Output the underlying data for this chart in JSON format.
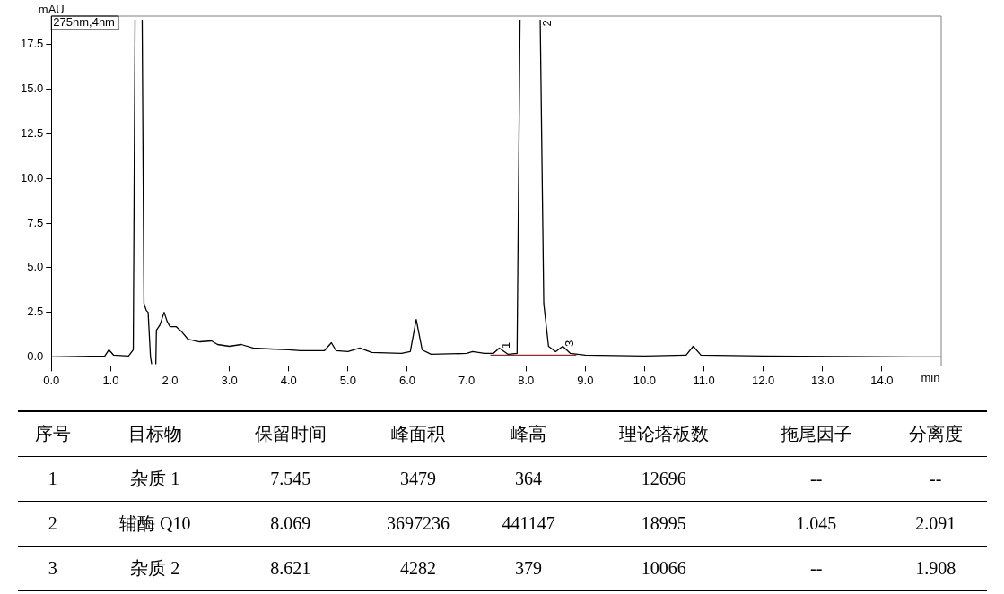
{
  "chart_data": [
    {
      "type": "line",
      "xlabel": "min",
      "ylabel": "mAU",
      "annotations": [
        "275nm,4nm",
        {
          "text": "1",
          "x": 7.545,
          "y": 0.5
        },
        {
          "text": "2",
          "x": 8.24,
          "y": 18.9
        },
        {
          "text": "3",
          "x": 8.621,
          "y": 0.6
        }
      ],
      "series": [
        {
          "color": "#000000",
          "x": [
            0,
            0.9,
            0.97,
            1.05,
            1.3,
            1.38,
            1.41,
            1.42,
            1.52,
            1.53,
            1.56,
            1.6,
            1.63,
            1.67,
            1.69,
            1.7,
            1.74,
            1.76,
            1.77,
            1.83,
            1.9,
            1.95,
            2.0,
            2.1,
            2.2,
            2.3,
            2.5,
            2.7,
            2.8,
            3.0,
            3.2,
            3.4,
            3.7,
            4.0,
            4.2,
            4.6,
            4.72,
            4.8,
            5.0,
            5.2,
            5.4,
            5.9,
            6.05,
            6.15,
            6.25,
            6.4,
            7.0,
            7.1,
            7.3,
            7.45,
            7.55,
            7.7,
            7.85,
            7.9,
            7.92,
            8.22,
            8.24,
            8.3,
            8.38,
            8.5,
            8.62,
            8.75,
            9.0,
            10.0,
            10.7,
            10.82,
            10.95,
            12.0,
            15.0
          ],
          "values": [
            0,
            0.05,
            0.4,
            0.1,
            0.05,
            0.4,
            18.9,
            null,
            null,
            18.9,
            3.0,
            2.6,
            2.5,
            0,
            -0.4,
            null,
            null,
            -0.4,
            1.5,
            1.8,
            2.5,
            2.0,
            1.7,
            1.7,
            1.4,
            1.0,
            0.85,
            0.9,
            0.7,
            0.6,
            0.7,
            0.5,
            0.45,
            0.4,
            0.35,
            0.35,
            0.8,
            0.35,
            0.3,
            0.5,
            0.25,
            0.2,
            0.3,
            2.1,
            0.4,
            0.15,
            0.2,
            0.3,
            0.2,
            0.2,
            0.5,
            0.15,
            0.2,
            18.9,
            null,
            null,
            18.9,
            3.0,
            0.6,
            0.3,
            0.6,
            0.2,
            0.1,
            0.05,
            0.1,
            0.6,
            0.1,
            0.05,
            0
          ]
        },
        {
          "color": "#ff0000",
          "x": [
            7.4,
            8.5,
            8.85
          ],
          "values": [
            0.1,
            0.1,
            0.1
          ]
        }
      ],
      "xlim": [
        0,
        15
      ],
      "ylim": [
        -0.5,
        19.1
      ],
      "xticks": [
        {
          "value": 0,
          "label": "0.0"
        },
        {
          "value": 1,
          "label": "1.0"
        },
        {
          "value": 2,
          "label": "2.0"
        },
        {
          "value": 3,
          "label": "3.0"
        },
        {
          "value": 4,
          "label": "4.0"
        },
        {
          "value": 5,
          "label": "5.0"
        },
        {
          "value": 6,
          "label": "6.0"
        },
        {
          "value": 7,
          "label": "7.0"
        },
        {
          "value": 8,
          "label": "8.0"
        },
        {
          "value": 9,
          "label": "9.0"
        },
        {
          "value": 10,
          "label": "10.0"
        },
        {
          "value": 11,
          "label": "11.0"
        },
        {
          "value": 12,
          "label": "12.0"
        },
        {
          "value": 13,
          "label": "13.0"
        },
        {
          "value": 14,
          "label": "14.0"
        }
      ],
      "yticks": [
        {
          "value": 0,
          "label": "0.0"
        },
        {
          "value": 2.5,
          "label": "2.5"
        },
        {
          "value": 5,
          "label": "5.0"
        },
        {
          "value": 7.5,
          "label": "7.5"
        },
        {
          "value": 10,
          "label": "10.0"
        },
        {
          "value": 12.5,
          "label": "12.5"
        },
        {
          "value": 15,
          "label": "15.0"
        },
        {
          "value": 17.5,
          "label": "17.5"
        }
      ],
      "grid": false,
      "legend": false,
      "marker": "none",
      "line_style": "solid"
    },
    {
      "type": "other",
      "categories": [
        "序号",
        "目标物",
        "保留时间",
        "峰面积",
        "峰高",
        "理论塔板数",
        "拖尾因子",
        "分离度"
      ],
      "cell_labels": [
        [
          "1",
          "杂质 1",
          "7.545",
          "3479",
          "364",
          "12696",
          "--",
          "--"
        ],
        [
          "2",
          "辅酶 Q10",
          "8.069",
          "3697236",
          "441147",
          "18995",
          "1.045",
          "2.091"
        ],
        [
          "3",
          "杂质 2",
          "8.621",
          "4282",
          "379",
          "10066",
          "--",
          "1.908"
        ]
      ]
    }
  ]
}
